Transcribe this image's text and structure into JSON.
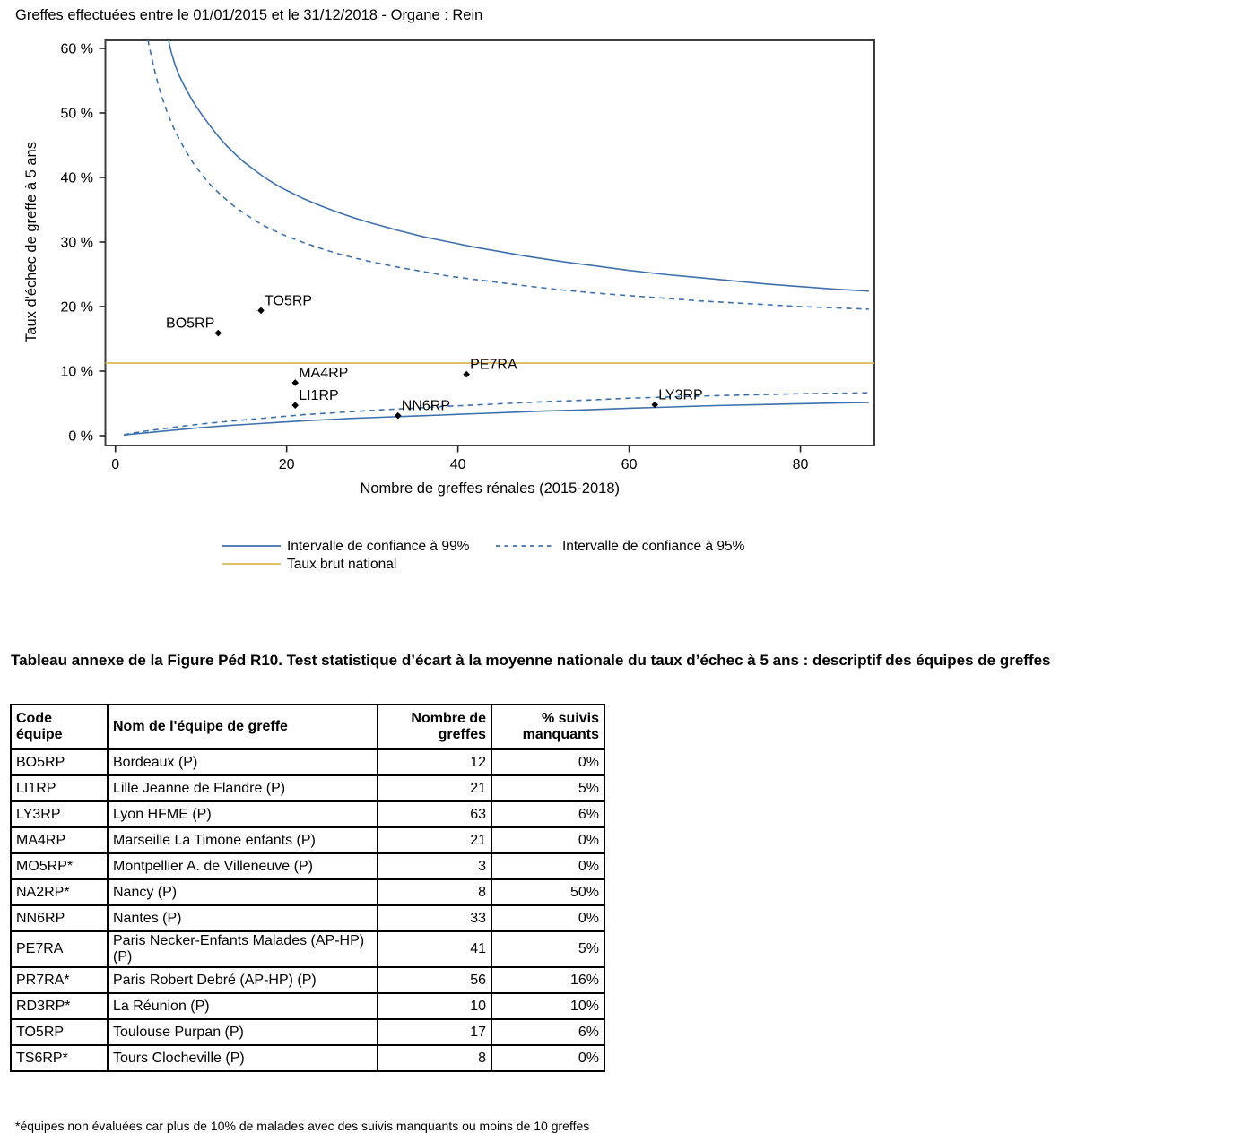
{
  "page": {
    "title": "Greffes effectuées entre le 01/01/2015 et le 31/12/2018 - Organe : Rein"
  },
  "chart_data": {
    "type": "scatter",
    "title": "Greffes effectuées entre le 01/01/2015 et le 31/12/2018 - Organe : Rein",
    "xlabel": "Nombre de greffes rénales (2015-2018)",
    "ylabel": "Taux d'échec de greffe à 5 ans",
    "xlim": [
      -1.2,
      88.6
    ],
    "ylim": [
      -1.5,
      61.3
    ],
    "x_ticks": [
      0,
      20,
      40,
      60,
      80
    ],
    "y_ticks": [
      0,
      10,
      20,
      30,
      40,
      50,
      60
    ],
    "y_tick_suffix": " %",
    "grid": false,
    "national_rate_pct": 11.25,
    "points": [
      {
        "label": "BO5RP",
        "x": 12,
        "y": 15.9,
        "label_pos": "left"
      },
      {
        "label": "TO5RP",
        "x": 17,
        "y": 19.4,
        "label_pos": "right"
      },
      {
        "label": "MA4RP",
        "x": 21,
        "y": 8.2,
        "label_pos": "right"
      },
      {
        "label": "LI1RP",
        "x": 21,
        "y": 4.7,
        "label_pos": "right"
      },
      {
        "label": "NN6RP",
        "x": 33,
        "y": 3.1,
        "label_pos": "right"
      },
      {
        "label": "PE7RA",
        "x": 41,
        "y": 9.5,
        "label_pos": "right"
      },
      {
        "label": "LY3RP",
        "x": 63,
        "y": 4.8,
        "label_pos": "right"
      }
    ],
    "curves": {
      "ci99_upper": [
        [
          6.2,
          61.3
        ],
        [
          6.5,
          59.5
        ],
        [
          7,
          57.3
        ],
        [
          7.5,
          55.7
        ],
        [
          8,
          54.3
        ],
        [
          9,
          51.9
        ],
        [
          10,
          49.9
        ],
        [
          11,
          48.1
        ],
        [
          12,
          46.4
        ],
        [
          13,
          44.9
        ],
        [
          14,
          43.6
        ],
        [
          15,
          42.4
        ],
        [
          16,
          41.4
        ],
        [
          17,
          40.4
        ],
        [
          18,
          39.5
        ],
        [
          19,
          38.7
        ],
        [
          20,
          38
        ],
        [
          22,
          36.7
        ],
        [
          24,
          35.6
        ],
        [
          26,
          34.6
        ],
        [
          28,
          33.7
        ],
        [
          30,
          32.9
        ],
        [
          33,
          31.8
        ],
        [
          36,
          30.8
        ],
        [
          39,
          30
        ],
        [
          42,
          29.2
        ],
        [
          45,
          28.5
        ],
        [
          48,
          27.8
        ],
        [
          52,
          27
        ],
        [
          56,
          26.3
        ],
        [
          60,
          25.6
        ],
        [
          64,
          25
        ],
        [
          68,
          24.5
        ],
        [
          72,
          24
        ],
        [
          76,
          23.5
        ],
        [
          80,
          23.1
        ],
        [
          84,
          22.7
        ],
        [
          88,
          22.4
        ]
      ],
      "ci95_upper": [
        [
          3.8,
          61.3
        ],
        [
          4,
          60
        ],
        [
          4.5,
          57
        ],
        [
          5,
          54.4
        ],
        [
          5.5,
          52.2
        ],
        [
          6,
          50.3
        ],
        [
          6.5,
          48.6
        ],
        [
          7,
          47.1
        ],
        [
          8,
          44.6
        ],
        [
          9,
          42.4
        ],
        [
          10,
          40.6
        ],
        [
          11,
          39
        ],
        [
          12,
          37.7
        ],
        [
          13,
          36.5
        ],
        [
          14,
          35.4
        ],
        [
          15,
          34.5
        ],
        [
          16,
          33.6
        ],
        [
          17,
          32.8
        ],
        [
          18,
          32.1
        ],
        [
          19,
          31.5
        ],
        [
          20,
          30.9
        ],
        [
          22,
          29.9
        ],
        [
          24,
          29
        ],
        [
          26,
          28.2
        ],
        [
          28,
          27.5
        ],
        [
          30,
          26.9
        ],
        [
          33,
          26.1
        ],
        [
          36,
          25.4
        ],
        [
          39,
          24.7
        ],
        [
          42,
          24.2
        ],
        [
          45,
          23.7
        ],
        [
          48,
          23.2
        ],
        [
          52,
          22.6
        ],
        [
          56,
          22.1
        ],
        [
          60,
          21.7
        ],
        [
          64,
          21.3
        ],
        [
          68,
          20.9
        ],
        [
          72,
          20.6
        ],
        [
          76,
          20.3
        ],
        [
          80,
          20
        ],
        [
          84,
          19.8
        ],
        [
          88,
          19.6
        ]
      ],
      "ci99_lower": [
        [
          1,
          0.1
        ],
        [
          2,
          0.25
        ],
        [
          4,
          0.5
        ],
        [
          6,
          0.75
        ],
        [
          8,
          1
        ],
        [
          10,
          1.25
        ],
        [
          13,
          1.55
        ],
        [
          16,
          1.8
        ],
        [
          19,
          2.05
        ],
        [
          22,
          2.3
        ],
        [
          25,
          2.5
        ],
        [
          28,
          2.7
        ],
        [
          31,
          2.85
        ],
        [
          34,
          3
        ],
        [
          38,
          3.2
        ],
        [
          42,
          3.4
        ],
        [
          46,
          3.6
        ],
        [
          50,
          3.8
        ],
        [
          55,
          4
        ],
        [
          60,
          4.25
        ],
        [
          65,
          4.45
        ],
        [
          70,
          4.65
        ],
        [
          75,
          4.8
        ],
        [
          80,
          4.95
        ],
        [
          84,
          5.05
        ],
        [
          88,
          5.15
        ]
      ],
      "ci95_lower": [
        [
          1,
          0.15
        ],
        [
          2,
          0.4
        ],
        [
          4,
          0.8
        ],
        [
          6,
          1.15
        ],
        [
          8,
          1.5
        ],
        [
          10,
          1.8
        ],
        [
          13,
          2.2
        ],
        [
          16,
          2.55
        ],
        [
          19,
          2.9
        ],
        [
          22,
          3.25
        ],
        [
          25,
          3.5
        ],
        [
          28,
          3.75
        ],
        [
          31,
          4
        ],
        [
          34,
          4.2
        ],
        [
          38,
          4.5
        ],
        [
          42,
          4.75
        ],
        [
          46,
          5
        ],
        [
          50,
          5.25
        ],
        [
          55,
          5.5
        ],
        [
          60,
          5.8
        ],
        [
          65,
          6
        ],
        [
          70,
          6.2
        ],
        [
          75,
          6.35
        ],
        [
          80,
          6.5
        ],
        [
          84,
          6.55
        ],
        [
          88,
          6.65
        ]
      ]
    },
    "legend": [
      {
        "label": "Intervalle de confiance à 99%",
        "style": "solid",
        "color": "#3e70ad"
      },
      {
        "label": "Intervalle de confiance à 95%",
        "style": "dashed",
        "color": "#3e70ad"
      },
      {
        "label": "Taux brut national",
        "style": "solid",
        "color": "#dcba55"
      }
    ],
    "legend_position": "bottom"
  },
  "colors": {
    "ci_line": "#3e70ad",
    "national_line": "#dcba55",
    "point": "#000000",
    "plot_border": "#3d3d3d"
  },
  "table": {
    "title": "Tableau annexe de la Figure Péd R10. Test statistique d’écart à la moyenne nationale du taux d’échec à 5 ans : descriptif des équipes de greffes",
    "headers": [
      "Code\néquipe",
      "Nom de l'équipe de greffe",
      "Nombre de\ngreffes",
      "% suivis\nmanquants"
    ],
    "col_align": [
      "left",
      "left",
      "right",
      "right"
    ],
    "rows": [
      [
        "BO5RP",
        "Bordeaux (P)",
        "12",
        "0%"
      ],
      [
        "LI1RP",
        "Lille Jeanne de Flandre (P)",
        "21",
        "5%"
      ],
      [
        "LY3RP",
        "Lyon HFME (P)",
        "63",
        "6%"
      ],
      [
        "MA4RP",
        "Marseille La Timone enfants (P)",
        "21",
        "0%"
      ],
      [
        "MO5RP*",
        "Montpellier A. de Villeneuve (P)",
        "3",
        "0%"
      ],
      [
        "NA2RP*",
        "Nancy (P)",
        "8",
        "50%"
      ],
      [
        "NN6RP",
        "Nantes (P)",
        "33",
        "0%"
      ],
      [
        "PE7RA",
        "Paris Necker-Enfants Malades (AP-HP) (P)",
        "41",
        "5%"
      ],
      [
        "PR7RA*",
        "Paris Robert Debré (AP-HP) (P)",
        "56",
        "16%"
      ],
      [
        "RD3RP*",
        "La Réunion (P)",
        "10",
        "10%"
      ],
      [
        "TO5RP",
        "Toulouse Purpan (P)",
        "17",
        "6%"
      ],
      [
        "TS6RP*",
        "Tours Clocheville (P)",
        "8",
        "0%"
      ]
    ],
    "footnote": "*équipes non évaluées car plus de 10% de malades avec des suivis manquants ou moins de 10 greffes"
  }
}
